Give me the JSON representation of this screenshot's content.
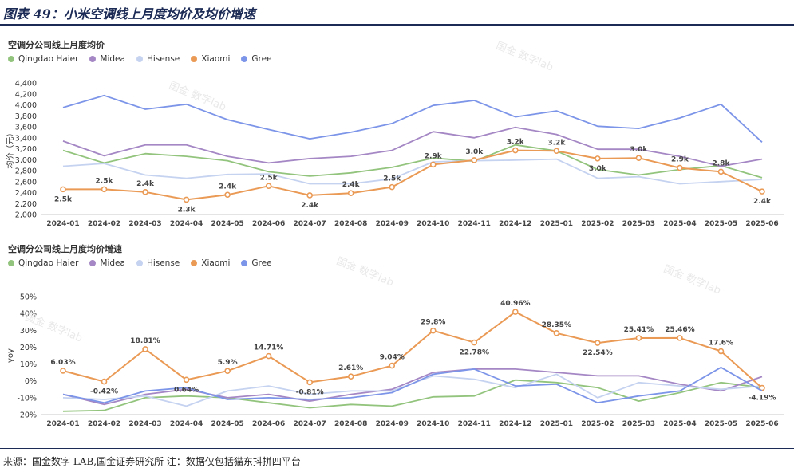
{
  "figure_title": "图表 49：小米空调线上月度均价及均价增速",
  "source_note": "来源：国金数字 LAB,国金证券研究所 注：数据仅包括猫东抖拼四平台",
  "watermark": "国金 数字lab",
  "categories": [
    "2024-01",
    "2024-02",
    "2024-03",
    "2024-04",
    "2024-05",
    "2024-06",
    "2024-07",
    "2024-08",
    "2024-09",
    "2024-10",
    "2024-11",
    "2024-12",
    "2025-01",
    "2025-02",
    "2025-03",
    "2025-04",
    "2025-05",
    "2025-06"
  ],
  "chart_data": [
    {
      "type": "line",
      "title": "空调分公司线上月度均价",
      "xlabel": "",
      "ylabel": "均价（元）",
      "ylim": [
        2000,
        4400
      ],
      "yticks": [
        2000,
        2200,
        2400,
        2600,
        2800,
        3000,
        3200,
        3400,
        3600,
        3800,
        4000,
        4200,
        4400
      ],
      "ytick_labels": [
        "2,000",
        "2,200",
        "2,400",
        "2,600",
        "2,800",
        "3,000",
        "3,200",
        "3,400",
        "3,600",
        "3,800",
        "4,000",
        "4,200",
        "4,400"
      ],
      "grid": false,
      "legend": "top-left",
      "series": [
        {
          "name": "Qingdao Haier",
          "color": "#93c47d",
          "values": [
            3170,
            2940,
            3110,
            3060,
            2980,
            2780,
            2700,
            2760,
            2860,
            3030,
            2970,
            3270,
            3160,
            2820,
            2720,
            2820,
            2890,
            2670
          ]
        },
        {
          "name": "Midea",
          "color": "#a487c4",
          "values": [
            3340,
            3070,
            3270,
            3270,
            3060,
            2940,
            3020,
            3060,
            3170,
            3510,
            3400,
            3590,
            3460,
            3190,
            3190,
            3060,
            2880,
            3010
          ]
        },
        {
          "name": "Hisense",
          "color": "#c5d2f0",
          "values": [
            2880,
            2930,
            2720,
            2660,
            2730,
            2740,
            2560,
            2560,
            2650,
            2960,
            2980,
            2990,
            3010,
            2660,
            2690,
            2560,
            2600,
            2640
          ]
        },
        {
          "name": "Xiaomi",
          "color": "#ea9a55",
          "values": [
            2460,
            2460,
            2410,
            2270,
            2360,
            2520,
            2350,
            2390,
            2500,
            2910,
            2990,
            3170,
            3160,
            3020,
            3030,
            2850,
            2780,
            2420
          ]
        },
        {
          "name": "Gree",
          "color": "#7d95e8",
          "values": [
            3950,
            4170,
            3920,
            4010,
            3730,
            3550,
            3380,
            3500,
            3660,
            3990,
            4080,
            3780,
            3890,
            3610,
            3570,
            3760,
            4010,
            3320
          ]
        }
      ],
      "annotations": [
        {
          "series": "Xiaomi",
          "index": 0,
          "label": "2.5k",
          "pos": "below"
        },
        {
          "series": "Xiaomi",
          "index": 1,
          "label": "2.5k",
          "pos": "above"
        },
        {
          "series": "Xiaomi",
          "index": 2,
          "label": "2.4k",
          "pos": "above"
        },
        {
          "series": "Xiaomi",
          "index": 3,
          "label": "2.3k",
          "pos": "below"
        },
        {
          "series": "Xiaomi",
          "index": 4,
          "label": "2.4k",
          "pos": "above"
        },
        {
          "series": "Xiaomi",
          "index": 5,
          "label": "2.5k",
          "pos": "above"
        },
        {
          "series": "Xiaomi",
          "index": 6,
          "label": "2.4k",
          "pos": "below"
        },
        {
          "series": "Xiaomi",
          "index": 7,
          "label": "2.4k",
          "pos": "above"
        },
        {
          "series": "Xiaomi",
          "index": 8,
          "label": "2.5k",
          "pos": "above"
        },
        {
          "series": "Xiaomi",
          "index": 9,
          "label": "2.9k",
          "pos": "above"
        },
        {
          "series": "Xiaomi",
          "index": 10,
          "label": "3.0k",
          "pos": "above"
        },
        {
          "series": "Xiaomi",
          "index": 11,
          "label": "3.2k",
          "pos": "above"
        },
        {
          "series": "Xiaomi",
          "index": 12,
          "label": "3.2k",
          "pos": "above"
        },
        {
          "series": "Xiaomi",
          "index": 13,
          "label": "3.0k",
          "pos": "below"
        },
        {
          "series": "Xiaomi",
          "index": 14,
          "label": "3.0k",
          "pos": "above"
        },
        {
          "series": "Xiaomi",
          "index": 15,
          "label": "2.9k",
          "pos": "above"
        },
        {
          "series": "Xiaomi",
          "index": 16,
          "label": "2.8k",
          "pos": "above"
        },
        {
          "series": "Xiaomi",
          "index": 17,
          "label": "2.4k",
          "pos": "below"
        }
      ]
    },
    {
      "type": "line",
      "title": "空调分公司线上月度均价增速",
      "xlabel": "",
      "ylabel": "yoy",
      "ylim": [
        -20,
        50
      ],
      "yticks": [
        -20,
        -10,
        0,
        10,
        20,
        30,
        40,
        50
      ],
      "ytick_labels": [
        "-20%",
        "-10%",
        "0%",
        "10%",
        "20%",
        "30%",
        "40%",
        "50%"
      ],
      "grid": false,
      "legend": "top-left",
      "series": [
        {
          "name": "Qingdao Haier",
          "color": "#93c47d",
          "values": [
            -18,
            -17.5,
            -10,
            -9,
            -10,
            -13,
            -16,
            -14,
            -15,
            -9.5,
            -9,
            0.5,
            -1,
            -4,
            -12,
            -7,
            -1,
            -4
          ]
        },
        {
          "name": "Midea",
          "color": "#a487c4",
          "values": [
            -8,
            -14,
            -8,
            -5,
            -10,
            -8,
            -12,
            -8,
            -5,
            5,
            7,
            7,
            5,
            3,
            3,
            -2,
            -6,
            2.5
          ]
        },
        {
          "name": "Hisense",
          "color": "#c5d2f0",
          "values": [
            -10,
            -11,
            -9,
            -15,
            -6,
            -3,
            -8,
            -6,
            -6,
            3,
            1,
            -4,
            4,
            -10,
            -1,
            -3,
            -5,
            -3
          ]
        },
        {
          "name": "Xiaomi",
          "color": "#ea9a55",
          "values": [
            6.03,
            -0.42,
            18.81,
            0.64,
            5.9,
            14.71,
            -0.81,
            2.61,
            9.04,
            29.8,
            22.78,
            40.96,
            28.35,
            22.54,
            25.41,
            25.46,
            17.6,
            -4.19
          ]
        },
        {
          "name": "Gree",
          "color": "#7d95e8",
          "values": [
            -8,
            -13,
            -6,
            -4,
            -11,
            -10,
            -11,
            -10,
            -7,
            4,
            7,
            -3,
            -2,
            -13,
            -9,
            -6,
            8,
            -6
          ]
        }
      ],
      "annotations": [
        {
          "series": "Xiaomi",
          "index": 0,
          "label": "6.03%",
          "pos": "above"
        },
        {
          "series": "Xiaomi",
          "index": 1,
          "label": "-0.42%",
          "pos": "below"
        },
        {
          "series": "Xiaomi",
          "index": 2,
          "label": "18.81%",
          "pos": "above"
        },
        {
          "series": "Xiaomi",
          "index": 3,
          "label": "0.64%",
          "pos": "below"
        },
        {
          "series": "Xiaomi",
          "index": 4,
          "label": "5.9%",
          "pos": "above"
        },
        {
          "series": "Xiaomi",
          "index": 5,
          "label": "14.71%",
          "pos": "above"
        },
        {
          "series": "Xiaomi",
          "index": 6,
          "label": "-0.81%",
          "pos": "below"
        },
        {
          "series": "Xiaomi",
          "index": 7,
          "label": "2.61%",
          "pos": "above"
        },
        {
          "series": "Xiaomi",
          "index": 8,
          "label": "9.04%",
          "pos": "above"
        },
        {
          "series": "Xiaomi",
          "index": 9,
          "label": "29.8%",
          "pos": "above"
        },
        {
          "series": "Xiaomi",
          "index": 10,
          "label": "22.78%",
          "pos": "below"
        },
        {
          "series": "Xiaomi",
          "index": 11,
          "label": "40.96%",
          "pos": "above"
        },
        {
          "series": "Xiaomi",
          "index": 12,
          "label": "28.35%",
          "pos": "above"
        },
        {
          "series": "Xiaomi",
          "index": 13,
          "label": "22.54%",
          "pos": "below"
        },
        {
          "series": "Xiaomi",
          "index": 14,
          "label": "25.41%",
          "pos": "above"
        },
        {
          "series": "Xiaomi",
          "index": 15,
          "label": "25.46%",
          "pos": "above"
        },
        {
          "series": "Xiaomi",
          "index": 16,
          "label": "17.6%",
          "pos": "above"
        },
        {
          "series": "Xiaomi",
          "index": 17,
          "label": "-4.19%",
          "pos": "below"
        }
      ]
    }
  ]
}
